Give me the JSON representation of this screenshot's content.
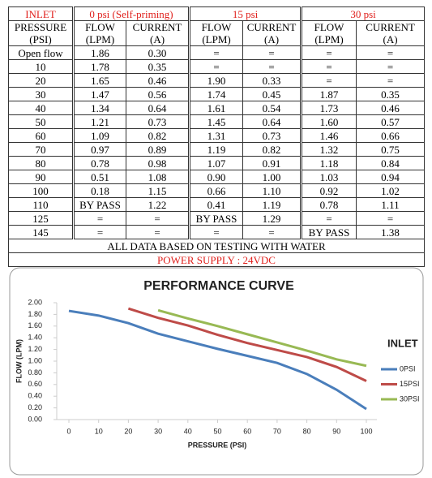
{
  "table": {
    "group_headers": [
      "INLET",
      "0 psi (Self-priming)",
      "15 psi",
      "30 psi"
    ],
    "column_headers": [
      [
        "PRESSURE",
        "(PSI)"
      ],
      [
        "FLOW",
        "(LPM)"
      ],
      [
        "CURRENT",
        "(A)"
      ],
      [
        "FLOW",
        "(LPM)"
      ],
      [
        "CURRENT",
        "(A)"
      ],
      [
        "FLOW",
        "(LPM)"
      ],
      [
        "CURRENT",
        "(A)"
      ]
    ],
    "rows": [
      [
        "Open flow",
        "1.86",
        "0.30",
        "=",
        "=",
        "=",
        "="
      ],
      [
        "10",
        "1.78",
        "0.35",
        "=",
        "=",
        "=",
        "="
      ],
      [
        "20",
        "1.65",
        "0.46",
        "1.90",
        "0.33",
        "=",
        "="
      ],
      [
        "30",
        "1.47",
        "0.56",
        "1.74",
        "0.45",
        "1.87",
        "0.35"
      ],
      [
        "40",
        "1.34",
        "0.64",
        "1.61",
        "0.54",
        "1.73",
        "0.46"
      ],
      [
        "50",
        "1.21",
        "0.73",
        "1.45",
        "0.64",
        "1.60",
        "0.57"
      ],
      [
        "60",
        "1.09",
        "0.82",
        "1.31",
        "0.73",
        "1.46",
        "0.66"
      ],
      [
        "70",
        "0.97",
        "0.89",
        "1.19",
        "0.82",
        "1.32",
        "0.75"
      ],
      [
        "80",
        "0.78",
        "0.98",
        "1.07",
        "0.91",
        "1.18",
        "0.84"
      ],
      [
        "90",
        "0.51",
        "1.08",
        "0.90",
        "1.00",
        "1.03",
        "0.94"
      ],
      [
        "100",
        "0.18",
        "1.15",
        "0.66",
        "1.10",
        "0.92",
        "1.02"
      ],
      [
        "110",
        "BY PASS",
        "1.22",
        "0.41",
        "1.19",
        "0.78",
        "1.11"
      ],
      [
        "125",
        "=",
        "=",
        "BY PASS",
        "1.29",
        "=",
        "="
      ],
      [
        "145",
        "=",
        "=",
        "=",
        "=",
        "BY PASS",
        "1.38"
      ]
    ],
    "footer": [
      "ALL DATA BASED ON TESTING WITH WATER",
      "POWER SUPPLY : 24VDC"
    ]
  },
  "chart_data": {
    "type": "line",
    "title": "PERFORMANCE CURVE",
    "x_label": "PRESSURE (PSI)",
    "y_label": "FLOW (LPM)",
    "legend_title": "INLET",
    "x": [
      0,
      10,
      20,
      30,
      40,
      50,
      60,
      70,
      80,
      90,
      100
    ],
    "series": [
      {
        "name": "0PSI",
        "color": "#4a7ebb",
        "values": [
          1.86,
          1.78,
          1.65,
          1.47,
          1.34,
          1.21,
          1.09,
          0.97,
          0.78,
          0.51,
          0.18
        ]
      },
      {
        "name": "15PSI",
        "color": "#be4b48",
        "values": [
          null,
          null,
          1.9,
          1.74,
          1.61,
          1.45,
          1.31,
          1.19,
          1.07,
          0.9,
          0.66
        ]
      },
      {
        "name": "30PSI",
        "color": "#98b954",
        "values": [
          null,
          null,
          null,
          1.87,
          1.73,
          1.6,
          1.46,
          1.32,
          1.18,
          1.03,
          0.92
        ]
      }
    ],
    "xlim": [
      0,
      100
    ],
    "xticks": [
      0,
      10,
      20,
      30,
      40,
      50,
      60,
      70,
      80,
      90,
      100
    ],
    "ylim": [
      0,
      2
    ],
    "yticks": [
      {
        "value": 0,
        "label": "0.00"
      },
      {
        "value": 0.2,
        "label": "0.20"
      },
      {
        "value": 0.4,
        "label": "0.40"
      },
      {
        "value": 0.6,
        "label": "0.60"
      },
      {
        "value": 0.8,
        "label": "0.80"
      },
      {
        "value": 1,
        "label": "1.00"
      },
      {
        "value": 1.2,
        "label": "1.20"
      },
      {
        "value": 1.4,
        "label": "1.40"
      },
      {
        "value": 1.6,
        "label": "1.60"
      },
      {
        "value": 1.8,
        "label": "1.80"
      },
      {
        "value": 2,
        "label": "2.00"
      }
    ],
    "legend": "right"
  }
}
